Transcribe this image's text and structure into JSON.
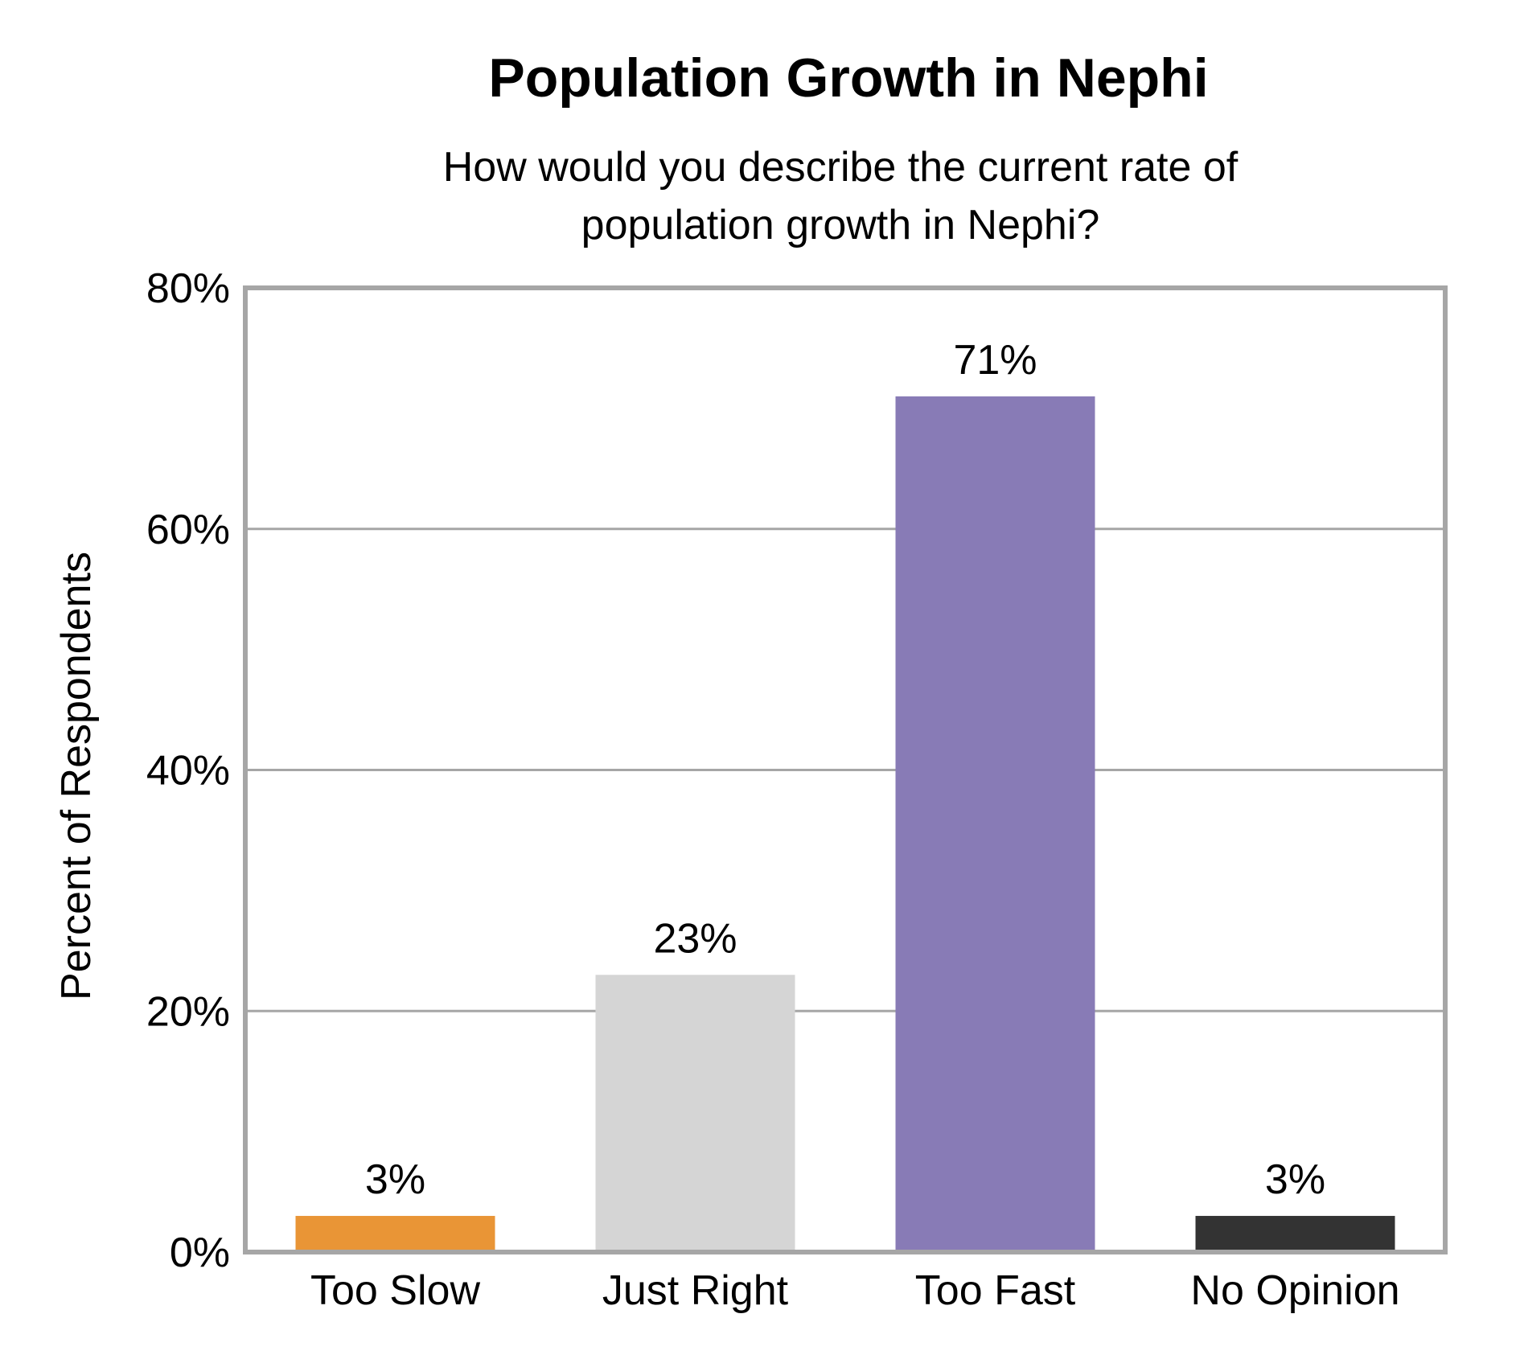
{
  "chart_data": {
    "type": "bar",
    "title": "Population Growth in Nephi",
    "subtitle_lines": [
      "How would you describe the current rate of",
      "population growth in Nephi?"
    ],
    "xlabel": "",
    "ylabel": "Percent of Respondents",
    "categories": [
      "Too Slow",
      "Just Right",
      "Too Fast",
      "No Opinion"
    ],
    "values": [
      3,
      23,
      71,
      3
    ],
    "value_labels": [
      "3%",
      "23%",
      "71%",
      "3%"
    ],
    "colors": [
      "#e99536",
      "#d5d5d5",
      "#887bb6",
      "#333333"
    ],
    "ylim": [
      0,
      80
    ],
    "yticks": [
      0,
      20,
      40,
      60,
      80
    ],
    "ytick_labels": [
      "0%",
      "20%",
      "40%",
      "60%",
      "80%"
    ],
    "grid": true,
    "legend": "none",
    "frame_color": "#a6a6a6"
  }
}
